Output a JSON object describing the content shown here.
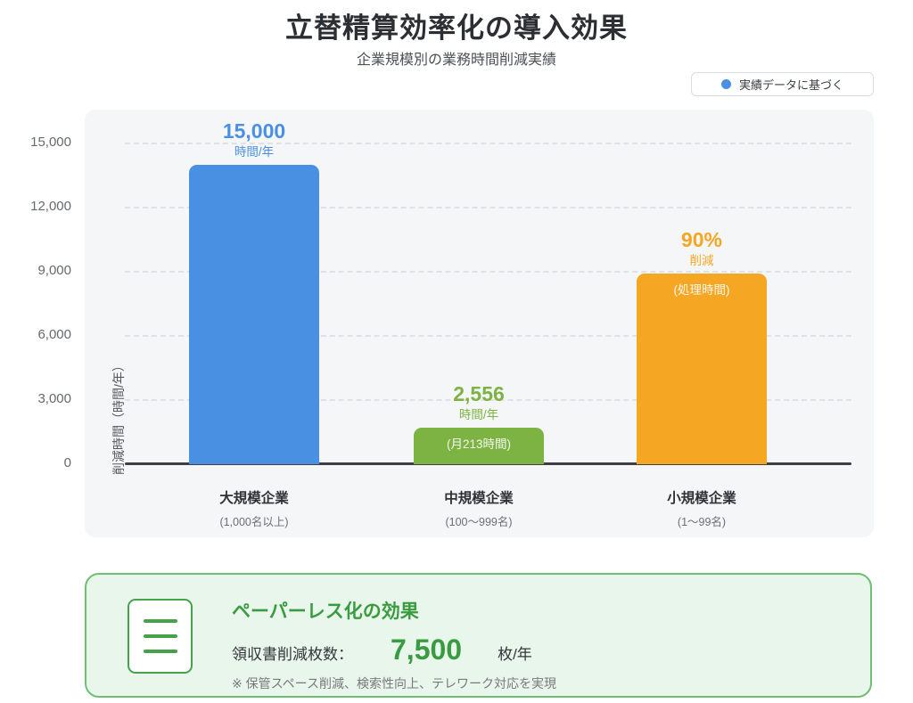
{
  "page": {
    "title": "立替精算効率化の導入効果",
    "subtitle": "企業規模別の業務時間削減実績"
  },
  "legend": {
    "label": "実績データに基づく",
    "dot_color": "#4a90e2"
  },
  "chart_data": {
    "type": "bar",
    "title": "立替精算効率化の導入効果",
    "subtitle": "企業規模別の業務時間削減実績",
    "ylabel": "削減時間（時間/年）",
    "ylim": [
      0,
      15000
    ],
    "yticks": [
      "15,000",
      "12,000",
      "9,000",
      "6,000",
      "3,000",
      "0"
    ],
    "grid": "horizontal dashed",
    "legend_position": "top-right",
    "categories": [
      "大規模企業",
      "中規模企業",
      "小規模企業"
    ],
    "bars": [
      {
        "category": "大規模企業",
        "category_sub": "(1,000名以上)",
        "value": 15000,
        "value_label": "15,000",
        "unit_label": "時間/年",
        "inner_label": "",
        "bar_height_value": 14000,
        "color": "#4a90e2"
      },
      {
        "category": "中規模企業",
        "category_sub": "(100〜999名)",
        "value": 2556,
        "value_label": "2,556",
        "unit_label": "時間/年",
        "inner_label": "(月213時間)",
        "bar_height_value": 1700,
        "color": "#7cb342"
      },
      {
        "category": "小規模企業",
        "category_sub": "(1〜99名)",
        "value": 9000,
        "value_label": "90%",
        "unit_label": "削減",
        "inner_label": "(処理時間)",
        "bar_height_value": 8900,
        "color": "#f5a623"
      }
    ]
  },
  "infobox": {
    "title": "ペーパーレス化の効果",
    "metric_label": "領収書削減枚数：",
    "metric_value": "7,500",
    "metric_unit": "枚/年",
    "note": "※ 保管スペース削減、検索性向上、テレワーク対応を実現",
    "icon": "document-lines-icon",
    "accent_color": "#3a9b41"
  }
}
